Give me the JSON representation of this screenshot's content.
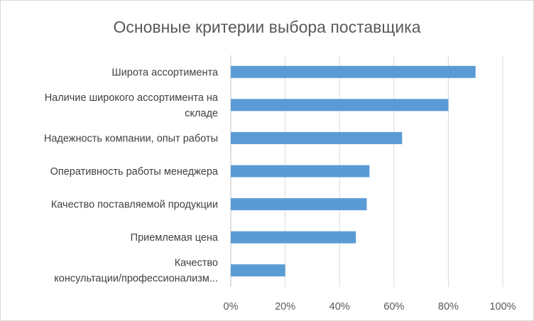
{
  "chart_data": {
    "type": "bar",
    "orientation": "horizontal",
    "title": "Основные критерии выбора поставщика",
    "categories": [
      [
        "Широта ассортимента"
      ],
      [
        "Наличие широкого ассортимента на",
        "складе"
      ],
      [
        "Надежность компании, опыт работы"
      ],
      [
        "Оперативность работы менеджера"
      ],
      [
        "Качество поставляемой продукции"
      ],
      [
        "Приемлемая цена"
      ],
      [
        "Качество",
        "консультации/профессионализм..."
      ]
    ],
    "values": [
      90,
      80,
      63,
      51,
      50,
      46,
      20
    ],
    "xlim": [
      0,
      100
    ],
    "x_ticks": [
      0,
      20,
      40,
      60,
      80,
      100
    ],
    "x_tick_labels": [
      "0%",
      "20%",
      "40%",
      "60%",
      "80%",
      "100%"
    ],
    "bar_color": "#5b9bd5",
    "grid": true,
    "legend": "none"
  }
}
